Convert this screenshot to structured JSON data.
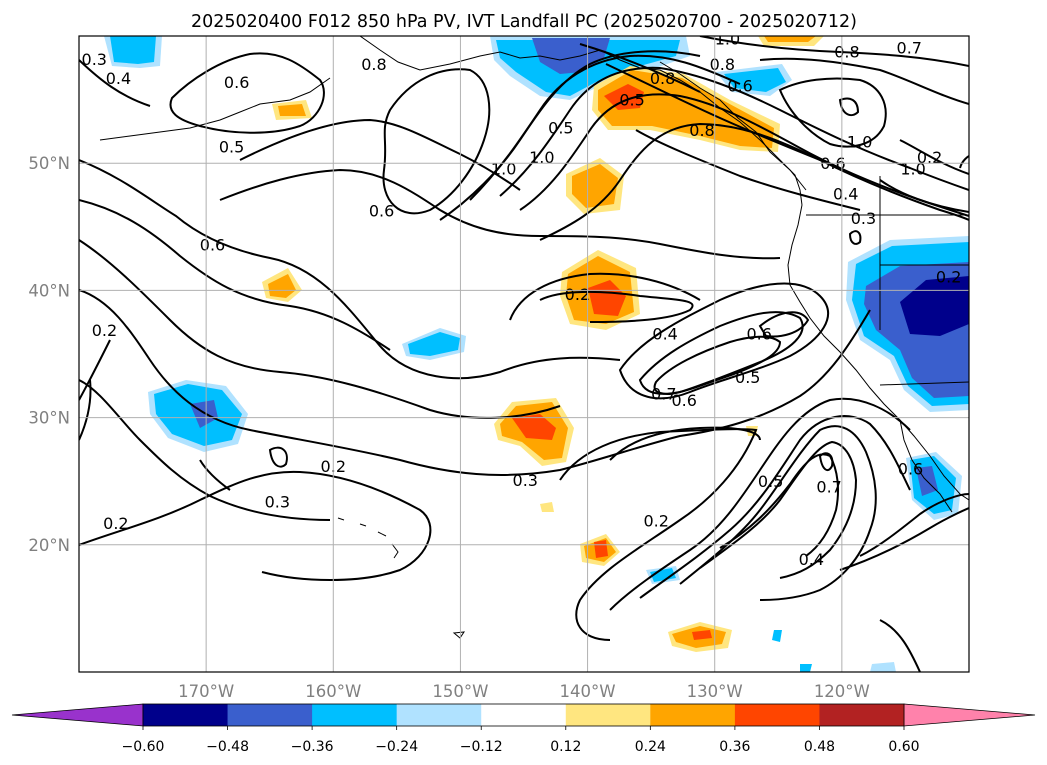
{
  "title": "2025020400 F012 850 hPa PV, IVT Landfall PC (2025020700 - 2025020712)",
  "map": {
    "lon_range": [
      -180,
      -110
    ],
    "lat_range": [
      10,
      60
    ],
    "lon_ticks": [
      {
        "value": -170,
        "label": "170°W"
      },
      {
        "value": -160,
        "label": "160°W"
      },
      {
        "value": -150,
        "label": "150°W"
      },
      {
        "value": -140,
        "label": "140°W"
      },
      {
        "value": -130,
        "label": "130°W"
      },
      {
        "value": -120,
        "label": "120°W"
      }
    ],
    "lat_ticks": [
      {
        "value": 50,
        "label": "50°N"
      },
      {
        "value": 40,
        "label": "40°N"
      },
      {
        "value": 30,
        "label": "30°N"
      },
      {
        "value": 20,
        "label": "20°N"
      }
    ],
    "gridlines": true,
    "contour_color": "#000000",
    "land_outline_color": "#000000"
  },
  "contour_labels": [
    {
      "text": "0.3",
      "lon": -178.8,
      "lat": 58.2
    },
    {
      "text": "0.4",
      "lon": -176.9,
      "lat": 56.7
    },
    {
      "text": "0.6",
      "lon": -167.6,
      "lat": 56.4
    },
    {
      "text": "0.5",
      "lon": -168.0,
      "lat": 51.3
    },
    {
      "text": "0.6",
      "lon": -169.5,
      "lat": 43.6
    },
    {
      "text": "0.2",
      "lon": -178.0,
      "lat": 36.9
    },
    {
      "text": "0.2",
      "lon": -177.1,
      "lat": 21.7
    },
    {
      "text": "0.3",
      "lon": -164.4,
      "lat": 23.4
    },
    {
      "text": "0.2",
      "lon": -160.0,
      "lat": 26.2
    },
    {
      "text": "0.3",
      "lon": -144.9,
      "lat": 25.1
    },
    {
      "text": "0.6",
      "lon": -156.2,
      "lat": 46.3
    },
    {
      "text": "0.8",
      "lon": -156.8,
      "lat": 57.8
    },
    {
      "text": "1.0",
      "lon": -146.6,
      "lat": 49.6
    },
    {
      "text": "1.0",
      "lon": -143.6,
      "lat": 50.5
    },
    {
      "text": "0.5",
      "lon": -142.1,
      "lat": 52.8
    },
    {
      "text": "0.5",
      "lon": -136.5,
      "lat": 55.0
    },
    {
      "text": "0.8",
      "lon": -134.1,
      "lat": 56.7
    },
    {
      "text": "0.8",
      "lon": -131.0,
      "lat": 52.6
    },
    {
      "text": "0.6",
      "lon": -128.0,
      "lat": 56.1
    },
    {
      "text": "1.0",
      "lon": -129.0,
      "lat": 59.8
    },
    {
      "text": "0.8",
      "lon": -129.4,
      "lat": 57.8
    },
    {
      "text": "0.8",
      "lon": -119.6,
      "lat": 58.8
    },
    {
      "text": "0.7",
      "lon": -114.7,
      "lat": 59.1
    },
    {
      "text": "1.0",
      "lon": -118.6,
      "lat": 51.7
    },
    {
      "text": "0.6",
      "lon": -120.7,
      "lat": 50.0
    },
    {
      "text": "0.4",
      "lon": -119.7,
      "lat": 47.6
    },
    {
      "text": "0.3",
      "lon": -118.3,
      "lat": 45.7
    },
    {
      "text": "1.0",
      "lon": -114.4,
      "lat": 49.6
    },
    {
      "text": "0.2",
      "lon": -113.1,
      "lat": 50.5
    },
    {
      "text": "0.2",
      "lon": -140.8,
      "lat": 39.7
    },
    {
      "text": "0.4",
      "lon": -133.9,
      "lat": 36.6
    },
    {
      "text": "0.6",
      "lon": -126.5,
      "lat": 36.6
    },
    {
      "text": "0.5",
      "lon": -127.4,
      "lat": 33.2
    },
    {
      "text": "0.7",
      "lon": -134.0,
      "lat": 31.9
    },
    {
      "text": "0.6",
      "lon": -132.4,
      "lat": 31.4
    },
    {
      "text": "0.5",
      "lon": -125.6,
      "lat": 25.0
    },
    {
      "text": "0.7",
      "lon": -121.0,
      "lat": 24.6
    },
    {
      "text": "0.2",
      "lon": -134.6,
      "lat": 21.9
    },
    {
      "text": "0.4",
      "lon": -122.4,
      "lat": 18.9
    },
    {
      "text": "0.6",
      "lon": -114.6,
      "lat": 26.0
    },
    {
      "text": "0.2",
      "lon": -111.6,
      "lat": 41.1
    }
  ],
  "colorbar": {
    "levels": [
      -0.6,
      -0.48,
      -0.36,
      -0.24,
      -0.12,
      0.12,
      0.24,
      0.36,
      0.48,
      0.6
    ],
    "tick_labels": [
      "−0.60",
      "−0.48",
      "−0.36",
      "−0.24",
      "−0.12",
      "0.12",
      "0.24",
      "0.36",
      "0.48",
      "0.60"
    ],
    "colors": [
      "#9932cc",
      "#00008b",
      "#3a5fcd",
      "#00bfff",
      "#b0e2ff",
      "#ffffff",
      "#ffe680",
      "#ffa500",
      "#ff4500",
      "#b22222",
      "#ff82ab"
    ],
    "extend": "both"
  }
}
